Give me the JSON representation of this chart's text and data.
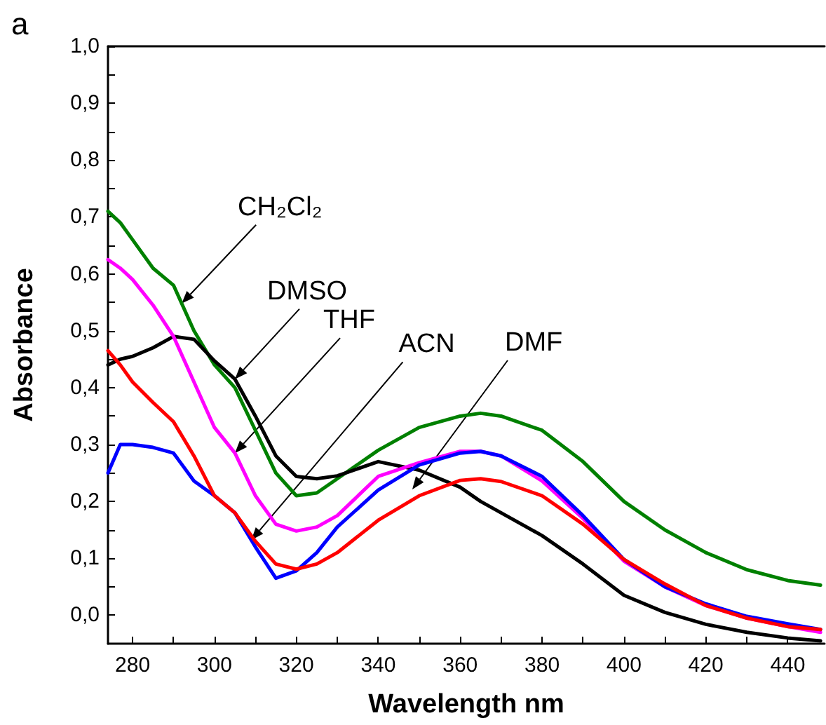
{
  "chart_data": {
    "type": "line",
    "xlabel": "Wavelength nm",
    "ylabel": "Absorbance",
    "x": [
      274,
      277,
      280,
      285,
      290,
      295,
      300,
      305,
      310,
      315,
      320,
      325,
      330,
      340,
      350,
      360,
      365,
      370,
      380,
      390,
      400,
      410,
      420,
      430,
      440,
      448
    ],
    "series": [
      {
        "color": "#008000",
        "values": [
          0.71,
          0.69,
          0.66,
          0.61,
          0.58,
          0.5,
          0.44,
          0.4,
          0.325,
          0.25,
          0.21,
          0.215,
          0.24,
          0.29,
          0.33,
          0.35,
          0.355,
          0.35,
          0.325,
          0.27,
          0.2,
          0.15,
          0.11,
          0.08,
          0.061,
          0.053
        ]
      },
      {
        "color": "#000000",
        "values": [
          0.44,
          0.45,
          0.455,
          0.47,
          0.49,
          0.485,
          0.447,
          0.415,
          0.35,
          0.28,
          0.244,
          0.24,
          0.245,
          0.27,
          0.255,
          0.225,
          0.2,
          0.18,
          0.14,
          0.09,
          0.035,
          0.005,
          -0.016,
          -0.03,
          -0.04,
          -0.045
        ]
      },
      {
        "color": "#ff00ff",
        "values": [
          0.625,
          0.61,
          0.59,
          0.545,
          0.49,
          0.41,
          0.33,
          0.285,
          0.21,
          0.16,
          0.148,
          0.155,
          0.175,
          0.244,
          0.268,
          0.288,
          0.288,
          0.28,
          0.236,
          0.17,
          0.095,
          0.05,
          0.017,
          -0.005,
          -0.02,
          -0.03
        ]
      },
      {
        "color": "#0000ff",
        "values": [
          0.25,
          0.3,
          0.3,
          0.295,
          0.285,
          0.236,
          0.21,
          0.18,
          0.12,
          0.065,
          0.078,
          0.11,
          0.155,
          0.22,
          0.264,
          0.285,
          0.288,
          0.28,
          0.244,
          0.175,
          0.098,
          0.05,
          0.02,
          -0.002,
          -0.015,
          -0.025
        ]
      },
      {
        "color": "#ff0000",
        "values": [
          0.465,
          0.44,
          0.41,
          0.374,
          0.34,
          0.28,
          0.21,
          0.18,
          0.13,
          0.09,
          0.081,
          0.09,
          0.11,
          0.167,
          0.21,
          0.237,
          0.24,
          0.235,
          0.21,
          0.16,
          0.098,
          0.055,
          0.017,
          -0.005,
          -0.02,
          -0.025
        ]
      }
    ],
    "xlim": [
      274,
      449
    ],
    "xticks": [
      280,
      {
        "value": 290,
        "label": null
      },
      300,
      {
        "value": 310,
        "label": null
      },
      320,
      {
        "value": 330,
        "label": null
      },
      340,
      {
        "value": 350,
        "label": null
      },
      360,
      {
        "value": 370,
        "label": null
      },
      380,
      {
        "value": 390,
        "label": null
      },
      400,
      {
        "value": 410,
        "label": null
      },
      420,
      {
        "value": 430,
        "label": null
      },
      440
    ],
    "ylim": [
      -0.05,
      1.0
    ],
    "yticks": [
      {
        "value": 0,
        "label": "0,0"
      },
      {
        "value": 0.05,
        "label": null
      },
      {
        "value": 0.1,
        "label": "0,1"
      },
      {
        "value": 0.15,
        "label": null
      },
      {
        "value": 0.2,
        "label": "0,2"
      },
      {
        "value": 0.25,
        "label": null
      },
      {
        "value": 0.3,
        "label": "0,3"
      },
      {
        "value": 0.35,
        "label": null
      },
      {
        "value": 0.4,
        "label": "0,4"
      },
      {
        "value": 0.45,
        "label": null
      },
      {
        "value": 0.5,
        "label": "0,5"
      },
      {
        "value": 0.55,
        "label": null
      },
      {
        "value": 0.6,
        "label": "0,6"
      },
      {
        "value": 0.65,
        "label": null
      },
      {
        "value": 0.7,
        "label": "0,7"
      },
      {
        "value": 0.75,
        "label": null
      },
      {
        "value": 0.8,
        "label": "0,8"
      },
      {
        "value": 0.85,
        "label": null
      },
      {
        "value": 0.9,
        "label": "0,9"
      },
      {
        "value": 0.95,
        "label": null
      },
      {
        "value": 1.0,
        "label": "1,0"
      }
    ],
    "grid": false,
    "marker": "none",
    "line_style": "solid",
    "annotations": [
      "a",
      {
        "text": "CH₂Cl₂",
        "x": 292,
        "y": 0.548
      },
      {
        "text": "DMSO",
        "x": 305,
        "y": 0.415
      },
      {
        "text": "THF",
        "x": 305,
        "y": 0.285
      },
      {
        "text": "ACN",
        "x": 309,
        "y": 0.132
      },
      "DMF"
    ]
  }
}
